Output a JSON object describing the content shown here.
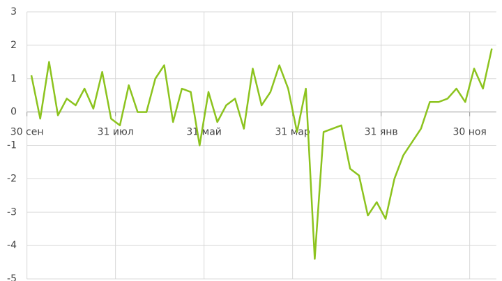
{
  "chart_data": {
    "type": "line",
    "categories": [
      "30 сен",
      null,
      null,
      null,
      null,
      null,
      null,
      null,
      null,
      null,
      "31 июл",
      null,
      null,
      null,
      null,
      null,
      null,
      null,
      null,
      null,
      "31 май",
      null,
      null,
      null,
      null,
      null,
      null,
      null,
      null,
      null,
      "31 мар",
      null,
      null,
      null,
      null,
      null,
      null,
      null,
      null,
      null,
      "31 янв",
      null,
      null,
      null,
      null,
      null,
      null,
      null,
      null,
      null,
      "30 ноя",
      null,
      null
    ],
    "series": [
      {
        "name": null,
        "color": "#8cc31e",
        "values": [
          1.1,
          -0.2,
          1.5,
          -0.1,
          0.4,
          0.2,
          0.7,
          0.1,
          1.2,
          -0.2,
          -0.4,
          0.8,
          0,
          0,
          1.0,
          1.4,
          -0.3,
          0.7,
          0.6,
          -1.0,
          0.6,
          -0.3,
          0.2,
          0.4,
          -0.5,
          1.3,
          0.2,
          0.6,
          1.4,
          0.7,
          -0.6,
          0.7,
          -4.4,
          -0.6,
          -0.5,
          -0.4,
          -1.7,
          -1.9,
          -3.1,
          -2.7,
          -3.2,
          -2.0,
          -1.3,
          -0.9,
          -0.5,
          0.3,
          0.3,
          0.4,
          0.7,
          0.3,
          1.3,
          0.7,
          1.9
        ]
      }
    ],
    "ylim": [
      -5,
      3
    ],
    "yticks": [
      -5,
      -4,
      -3,
      -2,
      -1,
      0,
      1,
      2,
      3
    ],
    "grid": true
  }
}
